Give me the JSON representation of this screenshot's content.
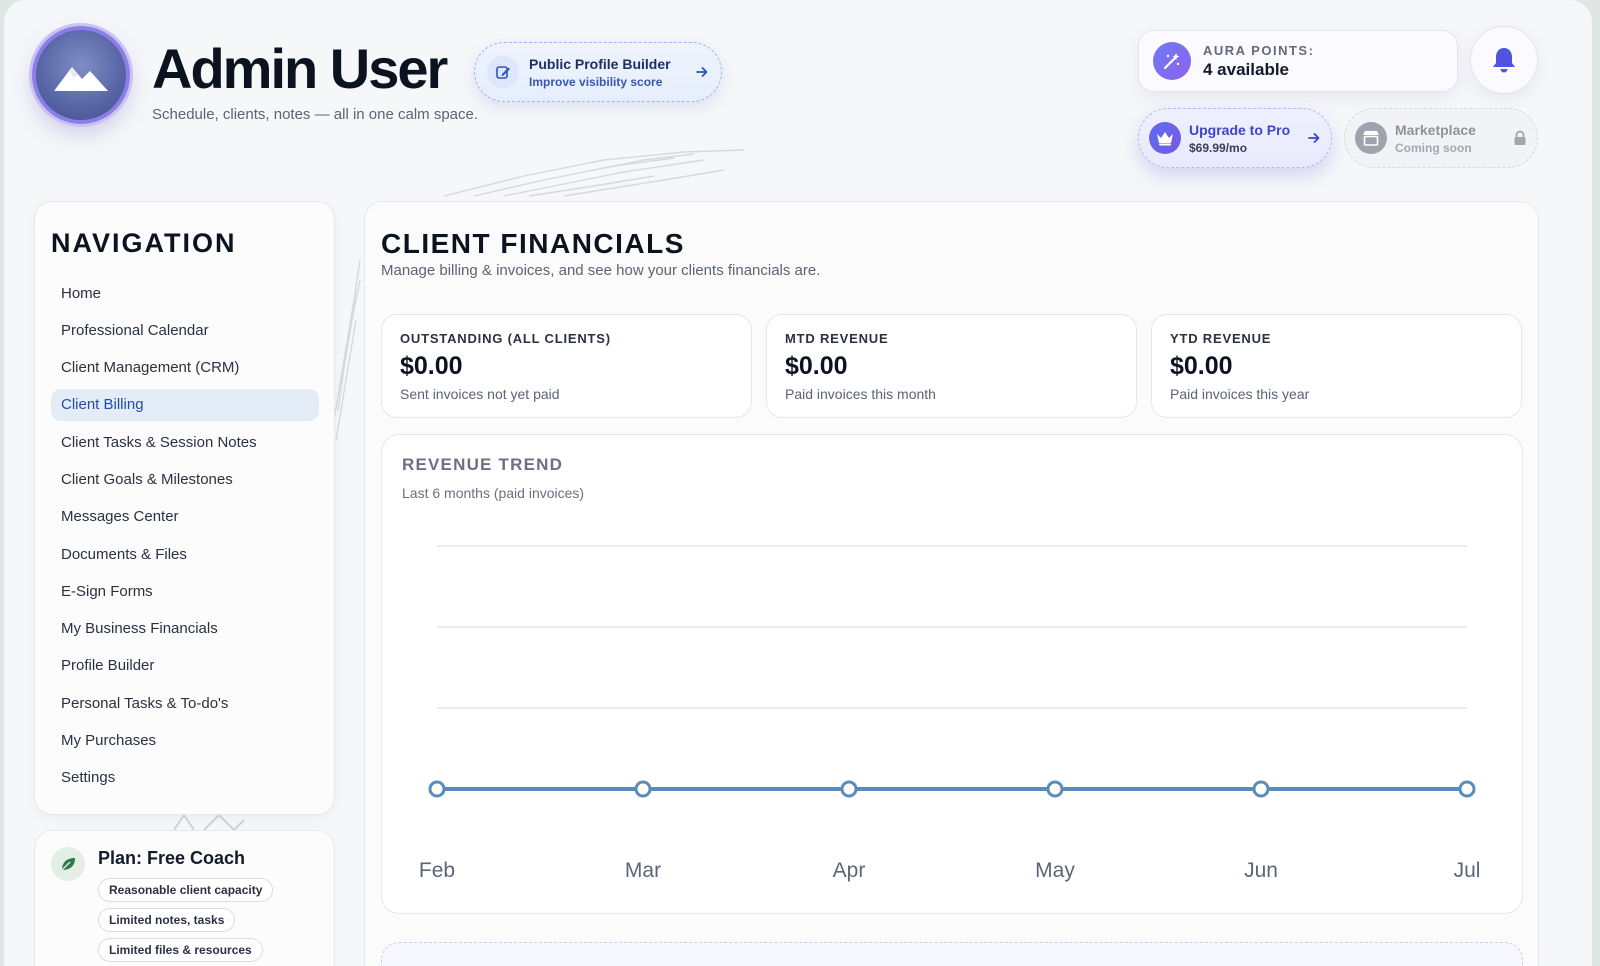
{
  "header": {
    "user_name": "Admin User",
    "tagline": "Schedule, clients, notes — all in one calm space.",
    "profile_builder": {
      "title": "Public Profile Builder",
      "subtitle": "Improve visibility score"
    },
    "aura": {
      "label": "AURA POINTS:",
      "value": "4 available"
    },
    "upgrade": {
      "title": "Upgrade to Pro",
      "price": "$69.99/mo"
    },
    "marketplace": {
      "title": "Marketplace",
      "subtitle": "Coming soon"
    }
  },
  "sidebar": {
    "title": "NAVIGATION",
    "items": [
      {
        "label": "Home"
      },
      {
        "label": "Professional Calendar"
      },
      {
        "label": "Client Management (CRM)"
      },
      {
        "label": "Client Billing",
        "active": true
      },
      {
        "label": "Client Tasks & Session Notes"
      },
      {
        "label": "Client Goals & Milestones"
      },
      {
        "label": "Messages Center"
      },
      {
        "label": "Documents & Files"
      },
      {
        "label": "E-Sign Forms"
      },
      {
        "label": "My Business Financials"
      },
      {
        "label": "Profile Builder"
      },
      {
        "label": "Personal Tasks & To-do's"
      },
      {
        "label": "My Purchases"
      },
      {
        "label": "Settings"
      }
    ],
    "plan": {
      "title": "Plan: Free Coach",
      "features": [
        "Reasonable client capacity",
        "Limited notes, tasks",
        "Limited files & resources"
      ]
    }
  },
  "main": {
    "title": "CLIENT FINANCIALS",
    "subtitle": "Manage billing & invoices, and see how your clients financials are.",
    "stats": [
      {
        "label": "OUTSTANDING (ALL CLIENTS)",
        "value": "$0.00",
        "note": "Sent invoices not yet paid"
      },
      {
        "label": "MTD REVENUE",
        "value": "$0.00",
        "note": "Paid invoices this month"
      },
      {
        "label": "YTD REVENUE",
        "value": "$0.00",
        "note": "Paid invoices this year"
      }
    ],
    "chart": {
      "title": "REVENUE TREND",
      "subtitle": "Last 6 months (paid invoices)"
    }
  },
  "colors": {
    "accent": "#3d45c9",
    "line": "#5b8bb8",
    "active_nav_bg": "#e4ecf7",
    "active_nav_text": "#1f4fa8"
  },
  "chart_data": {
    "type": "line",
    "categories": [
      "Feb",
      "Mar",
      "Apr",
      "May",
      "Jun",
      "Jul"
    ],
    "series": [
      {
        "values": [
          0,
          0,
          0,
          0,
          0,
          0
        ]
      }
    ],
    "title": "REVENUE TREND",
    "subtitle": "Last 6 months (paid invoices)",
    "grid": true,
    "legend": "none"
  }
}
